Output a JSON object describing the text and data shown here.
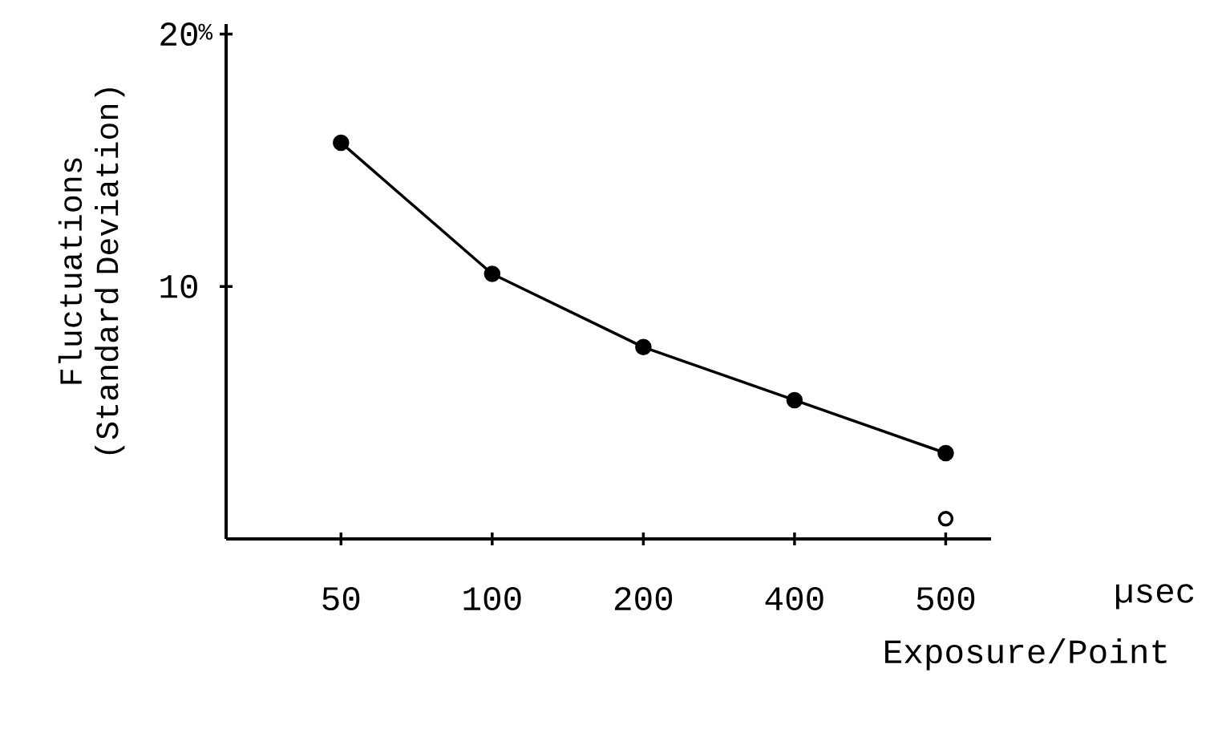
{
  "chart_data": {
    "type": "line",
    "xlabel": "Exposure/Point",
    "ylabel": "Fluctuations (Standard Deviation)",
    "annotations": [
      "%",
      "µsec"
    ],
    "categories": [
      "50",
      "100",
      "200",
      "400",
      "500"
    ],
    "ylim": [
      0,
      20.4
    ],
    "yticks": [
      10,
      20
    ],
    "marker": "circle",
    "line_style": "solid",
    "series": [
      {
        "color": "#000000",
        "values": [
          15.7,
          10.5,
          7.6,
          5.5,
          3.4
        ]
      },
      {
        "type": "scatter",
        "x": [
          "500"
        ],
        "color": "#000000",
        "values": [
          0.8
        ]
      }
    ]
  }
}
